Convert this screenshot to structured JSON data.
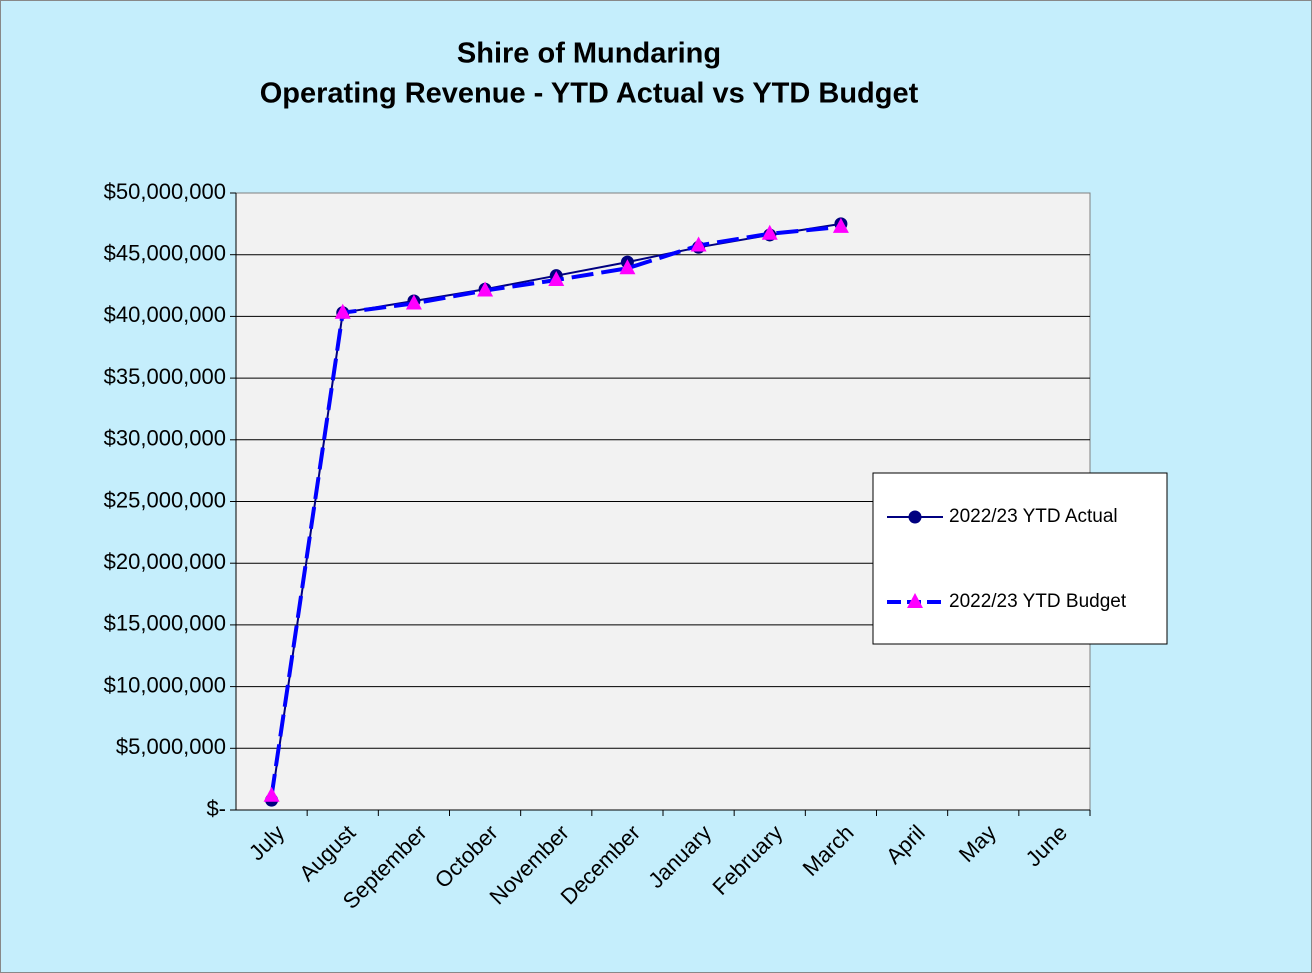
{
  "chart_data": {
    "type": "line",
    "title": "Shire of Mundaring",
    "subtitle": "Operating Revenue  - YTD Actual vs YTD Budget",
    "categories": [
      "July",
      "August",
      "September",
      "October",
      "November",
      "December",
      "January",
      "February",
      "March",
      "April",
      "May",
      "June"
    ],
    "series": [
      {
        "name": "2022/23 YTD Actual",
        "color": "#000080",
        "marker": "circle",
        "dashed": false,
        "values": [
          800000,
          40300000,
          41250000,
          42200000,
          43300000,
          44400000,
          45600000,
          46600000,
          47500000,
          null,
          null,
          null
        ]
      },
      {
        "name": "2022/23 YTD Budget",
        "color": "#0000ff",
        "marker_color": "#ff00ff",
        "marker": "triangle",
        "dashed": true,
        "values": [
          1150000,
          40300000,
          41050000,
          42100000,
          42950000,
          43900000,
          45750000,
          46700000,
          47250000,
          null,
          null,
          null
        ]
      }
    ],
    "ylim": [
      0,
      50000000
    ],
    "yticks": [
      {
        "value": 0,
        "label": "$-"
      },
      {
        "value": 5000000,
        "label": "$5,000,000"
      },
      {
        "value": 10000000,
        "label": "$10,000,000"
      },
      {
        "value": 15000000,
        "label": "$15,000,000"
      },
      {
        "value": 20000000,
        "label": "$20,000,000"
      },
      {
        "value": 25000000,
        "label": "$25,000,000"
      },
      {
        "value": 30000000,
        "label": "$30,000,000"
      },
      {
        "value": 35000000,
        "label": "$35,000,000"
      },
      {
        "value": 40000000,
        "label": "$40,000,000"
      },
      {
        "value": 45000000,
        "label": "$45,000,000"
      },
      {
        "value": 50000000,
        "label": "$50,000,000"
      }
    ],
    "grid": true,
    "legend": "right"
  }
}
